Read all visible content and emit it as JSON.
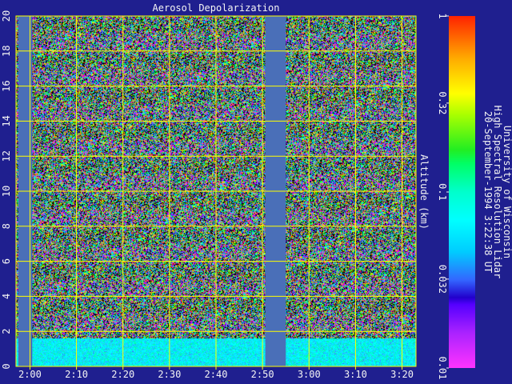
{
  "chart_data": {
    "type": "heatmap",
    "title": "Aerosol Depolarization",
    "ylabel": "Altitude (km)",
    "xlabel": "",
    "x_start_minutes": 117,
    "x_end_minutes": 203,
    "ylim": [
      0,
      20
    ],
    "x_ticks": [
      "2:00",
      "2:10",
      "2:20",
      "2:30",
      "2:40",
      "2:50",
      "3:00",
      "3:10",
      "3:20"
    ],
    "x_tick_minutes": [
      120,
      130,
      140,
      150,
      160,
      170,
      180,
      190,
      200
    ],
    "y_ticks": [
      "0",
      "2",
      "4",
      "6",
      "8",
      "10",
      "12",
      "14",
      "16",
      "18",
      "20"
    ],
    "y_tick_values": [
      0,
      2,
      4,
      6,
      8,
      10,
      12,
      14,
      16,
      18,
      20
    ],
    "grid": true,
    "data_gaps_minutes": [
      [
        117.5,
        120.5
      ],
      [
        170.6,
        175.0
      ]
    ],
    "boundary_layer_top_km": 1.8,
    "colorbar": {
      "scale": "log",
      "range": [
        0.01,
        1
      ],
      "ticks": [
        "0.01",
        "0.032",
        "0.1",
        "0.32",
        "1"
      ],
      "tick_values": [
        0.01,
        0.032,
        0.1,
        0.32,
        1
      ]
    }
  },
  "credits": {
    "line1": "University of Wisconsin",
    "line2": "High Spectral Resolution Lidar",
    "line3": "20-September-1994  3:22:38 UT"
  },
  "colors": {
    "background": "#1f1f8f",
    "grid": "#ffff00",
    "gap": "#4a6fb8",
    "text": "#f4f4f4"
  }
}
